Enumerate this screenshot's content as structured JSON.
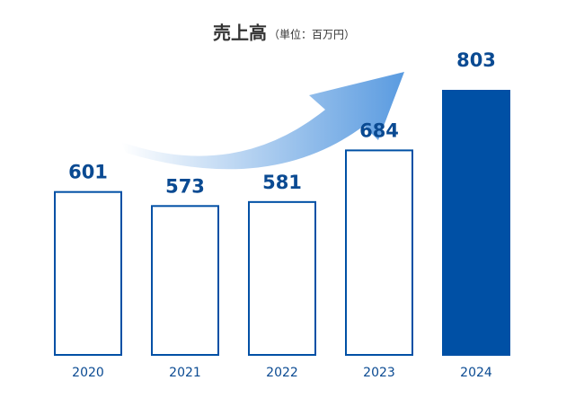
{
  "chart_data": {
    "type": "bar",
    "title": "売上高",
    "subtitle": "（単位：百万円）",
    "categories": [
      "2020",
      "2021",
      "2022",
      "2023",
      "2024"
    ],
    "values": [
      601,
      573,
      581,
      684,
      803
    ],
    "color": "#0050a5",
    "filled": [
      false,
      false,
      false,
      false,
      true
    ],
    "ylim": [
      276,
      803
    ]
  }
}
